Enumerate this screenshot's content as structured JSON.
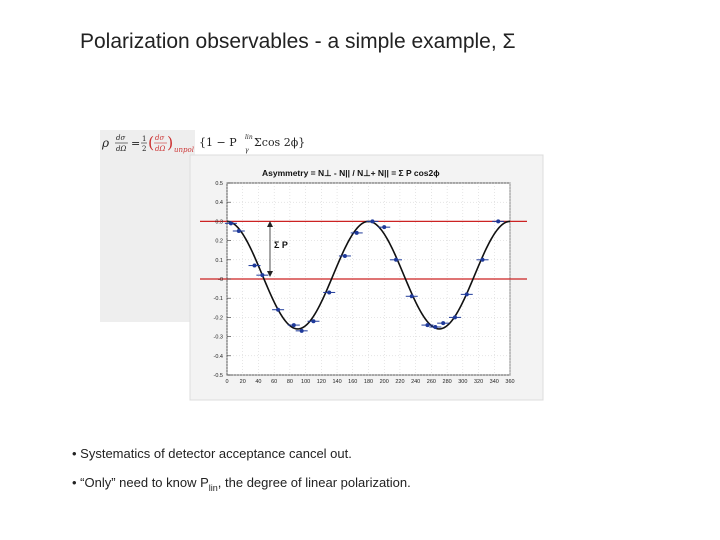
{
  "slide": {
    "title": "Polarization observables - a simple example, Σ",
    "bullets": [
      {
        "text": "• Systematics of detector acceptance cancel out."
      },
      {
        "prefix": "• “Only” need to know P",
        "sub": "lin",
        "suffix": ", the degree of linear polarization."
      }
    ]
  },
  "formula": {
    "lhs": "ρ",
    "num": "dσ",
    "den": "dΩ",
    "eq": "=",
    "half_num": "1",
    "half_den": "2",
    "unpol_sub": "unpol",
    "bracket": "{1 − P",
    "p_sup": "lin",
    "p_sub": "γ",
    "tail": "Σcos 2ϕ}"
  },
  "chart_data": {
    "type": "scatter",
    "title": "Asymmetry = N⊥ - N|| / N⊥+ N|| = Σ P cos2ϕ",
    "annotation": "Σ P",
    "xlim": [
      0,
      360
    ],
    "ylim": [
      -0.5,
      0.5
    ],
    "x_ticks": [
      0,
      20,
      40,
      60,
      80,
      100,
      120,
      140,
      160,
      180,
      200,
      220,
      240,
      260,
      280,
      300,
      320,
      340,
      360
    ],
    "y_ticks": [
      0.5,
      0.4,
      0.3,
      0.2,
      0.1,
      0,
      -0.1,
      -0.2,
      -0.3,
      -0.4,
      -0.5
    ],
    "y_tick_labels": [
      "0.5",
      "0.4",
      "0.3",
      "0.2",
      "0.1",
      "-0",
      "-0.1",
      "-0.2",
      "-0.3",
      "-0.4",
      "-0.5"
    ],
    "fit_amplitude": 0.28,
    "fit_offset": 0.02,
    "reference_lines": [
      0.3,
      0.0
    ],
    "points": {
      "x": [
        5,
        15,
        35,
        45,
        65,
        85,
        95,
        110,
        130,
        150,
        165,
        185,
        200,
        215,
        235,
        255,
        265,
        275,
        290,
        305,
        325,
        345
      ],
      "y": [
        0.29,
        0.25,
        0.07,
        0.02,
        -0.16,
        -0.24,
        -0.27,
        -0.22,
        -0.07,
        0.12,
        0.24,
        0.3,
        0.27,
        0.1,
        -0.09,
        -0.24,
        -0.25,
        -0.23,
        -0.2,
        -0.08,
        0.1,
        0.3
      ]
    },
    "colors": {
      "fit": "#111111",
      "points": "#1f3a9a",
      "reference": "#cc2222",
      "frame_bg": "#f3f3f3"
    }
  }
}
